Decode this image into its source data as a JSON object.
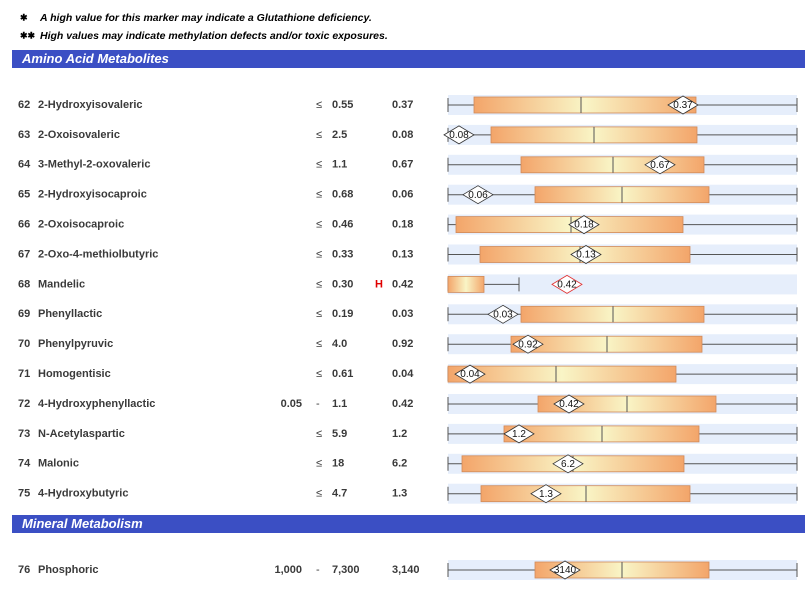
{
  "notes": [
    {
      "symbol": "✱",
      "text": "A high value for this marker may indicate a Glutathione deficiency."
    },
    {
      "symbol": "✱✱",
      "text": "High values may indicate methylation defects and/or toxic exposures."
    }
  ],
  "sections": [
    {
      "title": "Amino Acid Metabolites",
      "rows": [
        {
          "number": "62",
          "name": "2-Hydroxyisovaleric",
          "op": "≤",
          "limit": "0.55",
          "value": "0.37"
        },
        {
          "number": "63",
          "name": "2-Oxoisovaleric",
          "op": "≤",
          "limit": "2.5",
          "value": "0.08"
        },
        {
          "number": "64",
          "name": "3-Methyl-2-oxovaleric",
          "op": "≤",
          "limit": "1.1",
          "value": "0.67"
        },
        {
          "number": "65",
          "name": "2-Hydroxyisocaproic",
          "op": "≤",
          "limit": "0.68",
          "value": "0.06"
        },
        {
          "number": "66",
          "name": "2-Oxoisocaproic",
          "op": "≤",
          "limit": "0.46",
          "value": "0.18"
        },
        {
          "number": "67",
          "name": "2-Oxo-4-methiolbutyric",
          "op": "≤",
          "limit": "0.33",
          "value": "0.13"
        },
        {
          "number": "68",
          "name": "Mandelic",
          "op": "≤",
          "limit": "0.30",
          "flag": "H",
          "value": "0.42"
        },
        {
          "number": "69",
          "name": "Phenyllactic",
          "op": "≤",
          "limit": "0.19",
          "value": "0.03"
        },
        {
          "number": "70",
          "name": "Phenylpyruvic",
          "op": "≤",
          "limit": "4.0",
          "value": "0.92"
        },
        {
          "number": "71",
          "name": "Homogentisic",
          "op": "≤",
          "limit": "0.61",
          "value": "0.04"
        },
        {
          "number": "72",
          "name": "4-Hydroxyphenyllactic",
          "low": "0.05",
          "op": "-",
          "limit": "1.1",
          "value": "0.42"
        },
        {
          "number": "73",
          "name": "N-Acetylaspartic",
          "op": "≤",
          "limit": "5.9",
          "value": "1.2"
        },
        {
          "number": "74",
          "name": "Malonic",
          "op": "≤",
          "limit": "18",
          "value": "6.2"
        },
        {
          "number": "75",
          "name": "4-Hydroxybutyric",
          "op": "≤",
          "limit": "4.7",
          "value": "1.3"
        }
      ]
    },
    {
      "title": "Mineral Metabolism",
      "rows": [
        {
          "number": "76",
          "name": "Phosphoric",
          "low": "1,000",
          "op": "-",
          "limit": "7,300",
          "value": "3,140",
          "marker": "3140"
        }
      ]
    }
  ]
}
